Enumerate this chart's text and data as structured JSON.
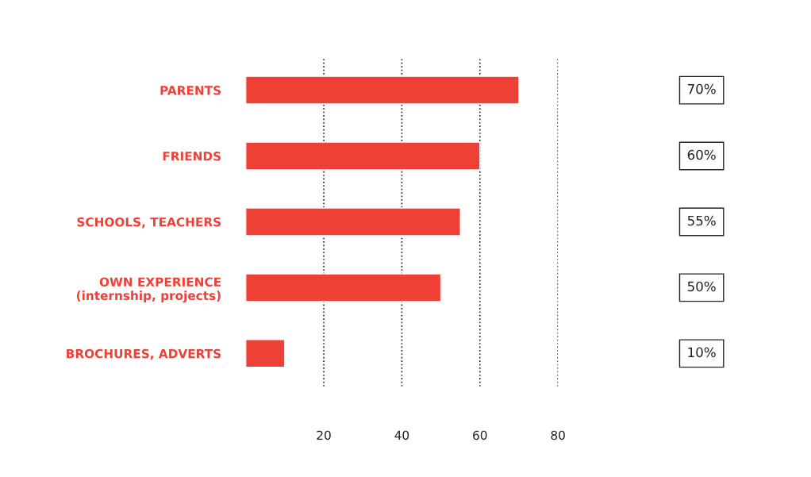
{
  "chart_data": {
    "type": "bar",
    "orientation": "horizontal",
    "categories": [
      "PARENTS",
      "FRIENDS",
      "SCHOOLS, TEACHERS",
      "OWN EXPERIENCE\n(internship, projects)",
      "BROCHURES, ADVERTS"
    ],
    "values": [
      70,
      60,
      55,
      50,
      10
    ],
    "value_labels": [
      "70%",
      "60%",
      "55%",
      "50%",
      "10%"
    ],
    "color": "#ee4036",
    "xlim": [
      0,
      80
    ],
    "xticks": [
      20,
      40,
      60,
      80
    ],
    "grid": "x"
  }
}
